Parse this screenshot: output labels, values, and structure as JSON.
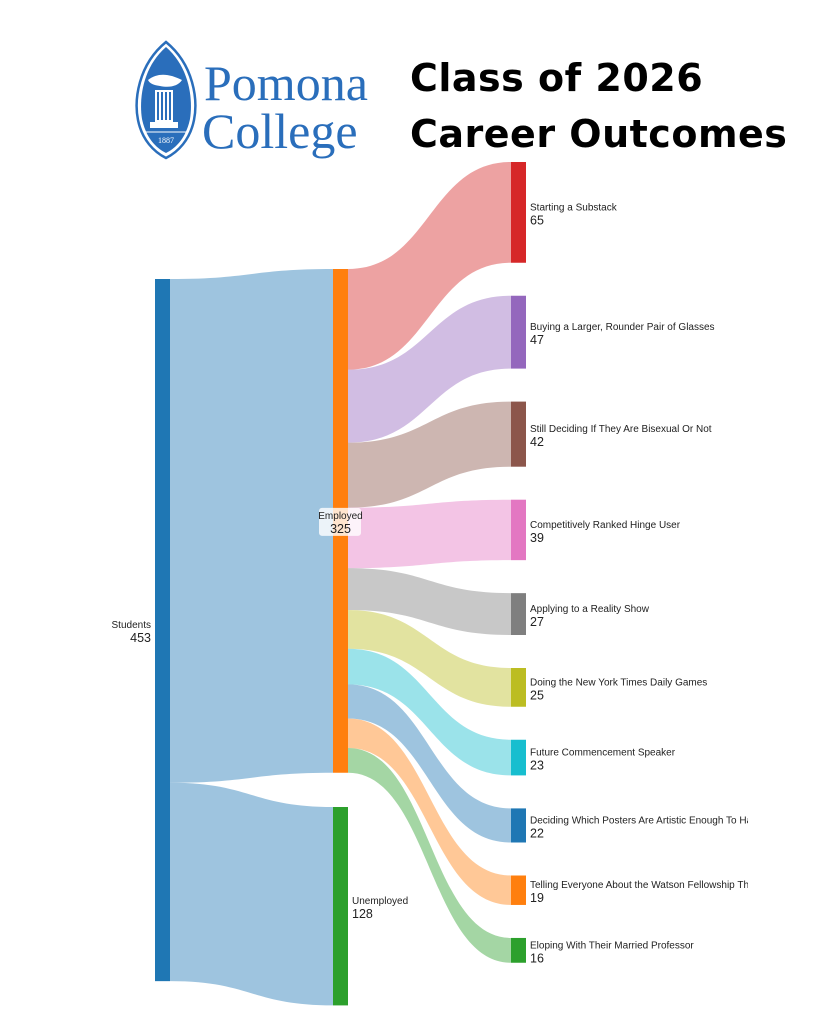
{
  "logo": {
    "name_line1": "Pomona",
    "name_line2": "College",
    "year": "1887",
    "color": "#2a6ebb"
  },
  "title": {
    "line1": "Class of 2026",
    "line2": "Career Outcomes"
  },
  "chart_data": {
    "type": "sankey",
    "nodes": [
      {
        "id": "students",
        "label": "Students",
        "value": 453,
        "color": "#1f77b4"
      },
      {
        "id": "employed",
        "label": "Employed",
        "value": 325,
        "color": "#ff7f0e"
      },
      {
        "id": "unemployed",
        "label": "Unemployed",
        "value": 128,
        "color": "#2ca02c"
      },
      {
        "id": "t0",
        "label": "Starting a Substack",
        "value": 65,
        "color": "#d62728"
      },
      {
        "id": "t1",
        "label": "Buying a Larger, Rounder Pair of Glasses",
        "value": 47,
        "color": "#9467bd"
      },
      {
        "id": "t2",
        "label": "Still Deciding If They Are Bisexual Or Not",
        "value": 42,
        "color": "#8c564b"
      },
      {
        "id": "t3",
        "label": "Competitively Ranked Hinge User",
        "value": 39,
        "color": "#e377c2"
      },
      {
        "id": "t4",
        "label": "Applying to a Reality Show",
        "value": 27,
        "color": "#7f7f7f"
      },
      {
        "id": "t5",
        "label": "Doing the New York Times Daily Games",
        "value": 25,
        "color": "#bcbd22"
      },
      {
        "id": "t6",
        "label": "Future Commencement Speaker",
        "value": 23,
        "color": "#17becf"
      },
      {
        "id": "t7",
        "label": "Deciding Which Posters Are Artistic Enough To Hang Postgr",
        "value": 22,
        "color": "#1f77b4"
      },
      {
        "id": "t8",
        "label": "Telling Everyone About the Watson Fellowship They Didn't G",
        "value": 19,
        "color": "#ff7f0e"
      },
      {
        "id": "t9",
        "label": "Eloping With Their Married Professor",
        "value": 16,
        "color": "#2ca02c"
      }
    ],
    "links": [
      {
        "source": "students",
        "target": "employed",
        "value": 325
      },
      {
        "source": "students",
        "target": "unemployed",
        "value": 128
      },
      {
        "source": "employed",
        "target": "t0",
        "value": 65
      },
      {
        "source": "employed",
        "target": "t1",
        "value": 47
      },
      {
        "source": "employed",
        "target": "t2",
        "value": 42
      },
      {
        "source": "employed",
        "target": "t3",
        "value": 39
      },
      {
        "source": "employed",
        "target": "t4",
        "value": 27
      },
      {
        "source": "employed",
        "target": "t5",
        "value": 25
      },
      {
        "source": "employed",
        "target": "t6",
        "value": 23
      },
      {
        "source": "employed",
        "target": "t7",
        "value": 22
      },
      {
        "source": "employed",
        "target": "t8",
        "value": 19
      },
      {
        "source": "employed",
        "target": "t9",
        "value": 16
      }
    ]
  }
}
